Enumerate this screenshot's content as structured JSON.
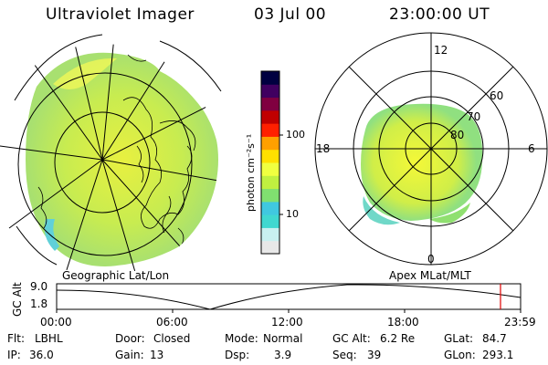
{
  "header": {
    "title": "Ultraviolet Imager",
    "date": "03 Jul 00",
    "time": "23:00:00 UT"
  },
  "colorbar": {
    "unit_label": "photon cm⁻²s⁻¹",
    "tick_100": "100",
    "tick_10": "10",
    "colors": [
      "#e8e8e8",
      "#c8f0f0",
      "#40d8d0",
      "#40c8e0",
      "#80e070",
      "#c0f040",
      "#f0ff40",
      "#ffe000",
      "#ffa000",
      "#ff2000",
      "#c00000",
      "#800040",
      "#400060",
      "#000040"
    ]
  },
  "left_map": {
    "caption": "Geographic Lat/Lon"
  },
  "right_map": {
    "caption": "Apex MLat/MLT",
    "mlt_12": "12",
    "mlt_18": "18",
    "mlt_6": "6",
    "mlt_0": "0",
    "lat_60": "60",
    "lat_70": "70",
    "lat_80": "80"
  },
  "altitude_plot": {
    "ylabel": "GC Alt",
    "ymax": "9.0",
    "ymin": "1.8",
    "xticks": [
      "00:00",
      "06:00",
      "12:00",
      "18:00",
      "23:59"
    ],
    "marker_color": "#e00000"
  },
  "info": {
    "flt_label": "Flt:",
    "flt_value": "LBHL",
    "ip_label": "IP:",
    "ip_value": "36.0",
    "door_label": "Door:",
    "door_value": "Closed",
    "gain_label": "Gain:",
    "gain_value": "13",
    "mode_label": "Mode:",
    "mode_value": "Normal",
    "dsp_label": "Dsp:",
    "dsp_value": "3.9",
    "gcalt_label": "GC Alt:",
    "gcalt_value": "6.2 Re",
    "seq_label": "Seq:",
    "seq_value": "39",
    "glat_label": "GLat:",
    "glat_value": "84.7",
    "glon_label": "GLon:",
    "glon_value": "293.1"
  }
}
